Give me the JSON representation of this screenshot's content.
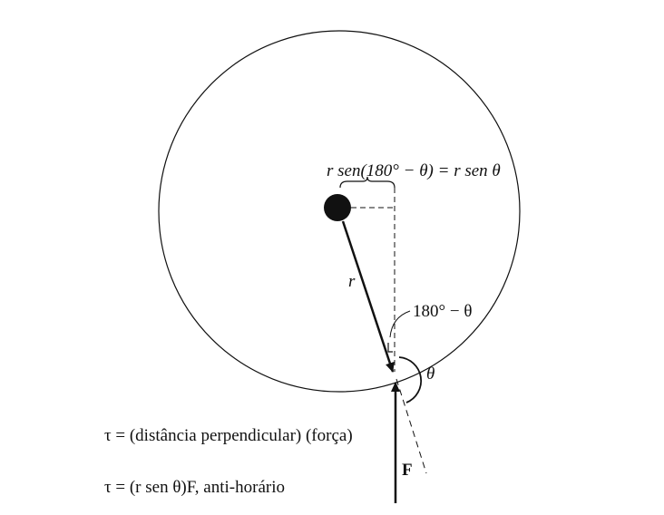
{
  "labels": {
    "distance": "r sen(180° − θ) = r sen θ",
    "radius": "r",
    "supplement_angle": "180° − θ",
    "angle": "θ",
    "force": "F"
  },
  "equations": [
    "τ = (distância perpendicular) (força)",
    "τ = (r sen θ)F, anti-horário"
  ]
}
